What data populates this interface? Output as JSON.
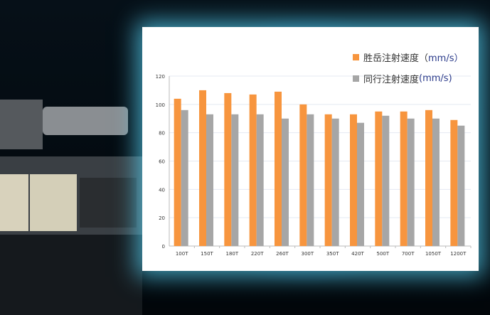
{
  "chart_data": {
    "type": "bar",
    "categories": [
      "100T",
      "150T",
      "180T",
      "220T",
      "260T",
      "300T",
      "350T",
      "420T",
      "500T",
      "700T",
      "1050T",
      "1200T"
    ],
    "series": [
      {
        "name": "胜岳注射速度（mm/s）",
        "name_text": "胜岳注射速度（",
        "name_unit": "mm/s）",
        "color": "#f7953e",
        "values": [
          104,
          110,
          108,
          107,
          109,
          100,
          93,
          93,
          95,
          95,
          96,
          89
        ]
      },
      {
        "name": "同行注射速度(mm/s)",
        "name_text": "同行注射速度",
        "name_unit": "(mm/s)",
        "color": "#a6a6a6",
        "values": [
          96,
          93,
          93,
          93,
          90,
          93,
          90,
          87,
          92,
          90,
          90,
          85
        ]
      }
    ],
    "yticks": [
      0,
      20,
      40,
      60,
      80,
      100,
      120
    ],
    "ylim": [
      0,
      120
    ],
    "grid": true,
    "legend": "top-right"
  }
}
